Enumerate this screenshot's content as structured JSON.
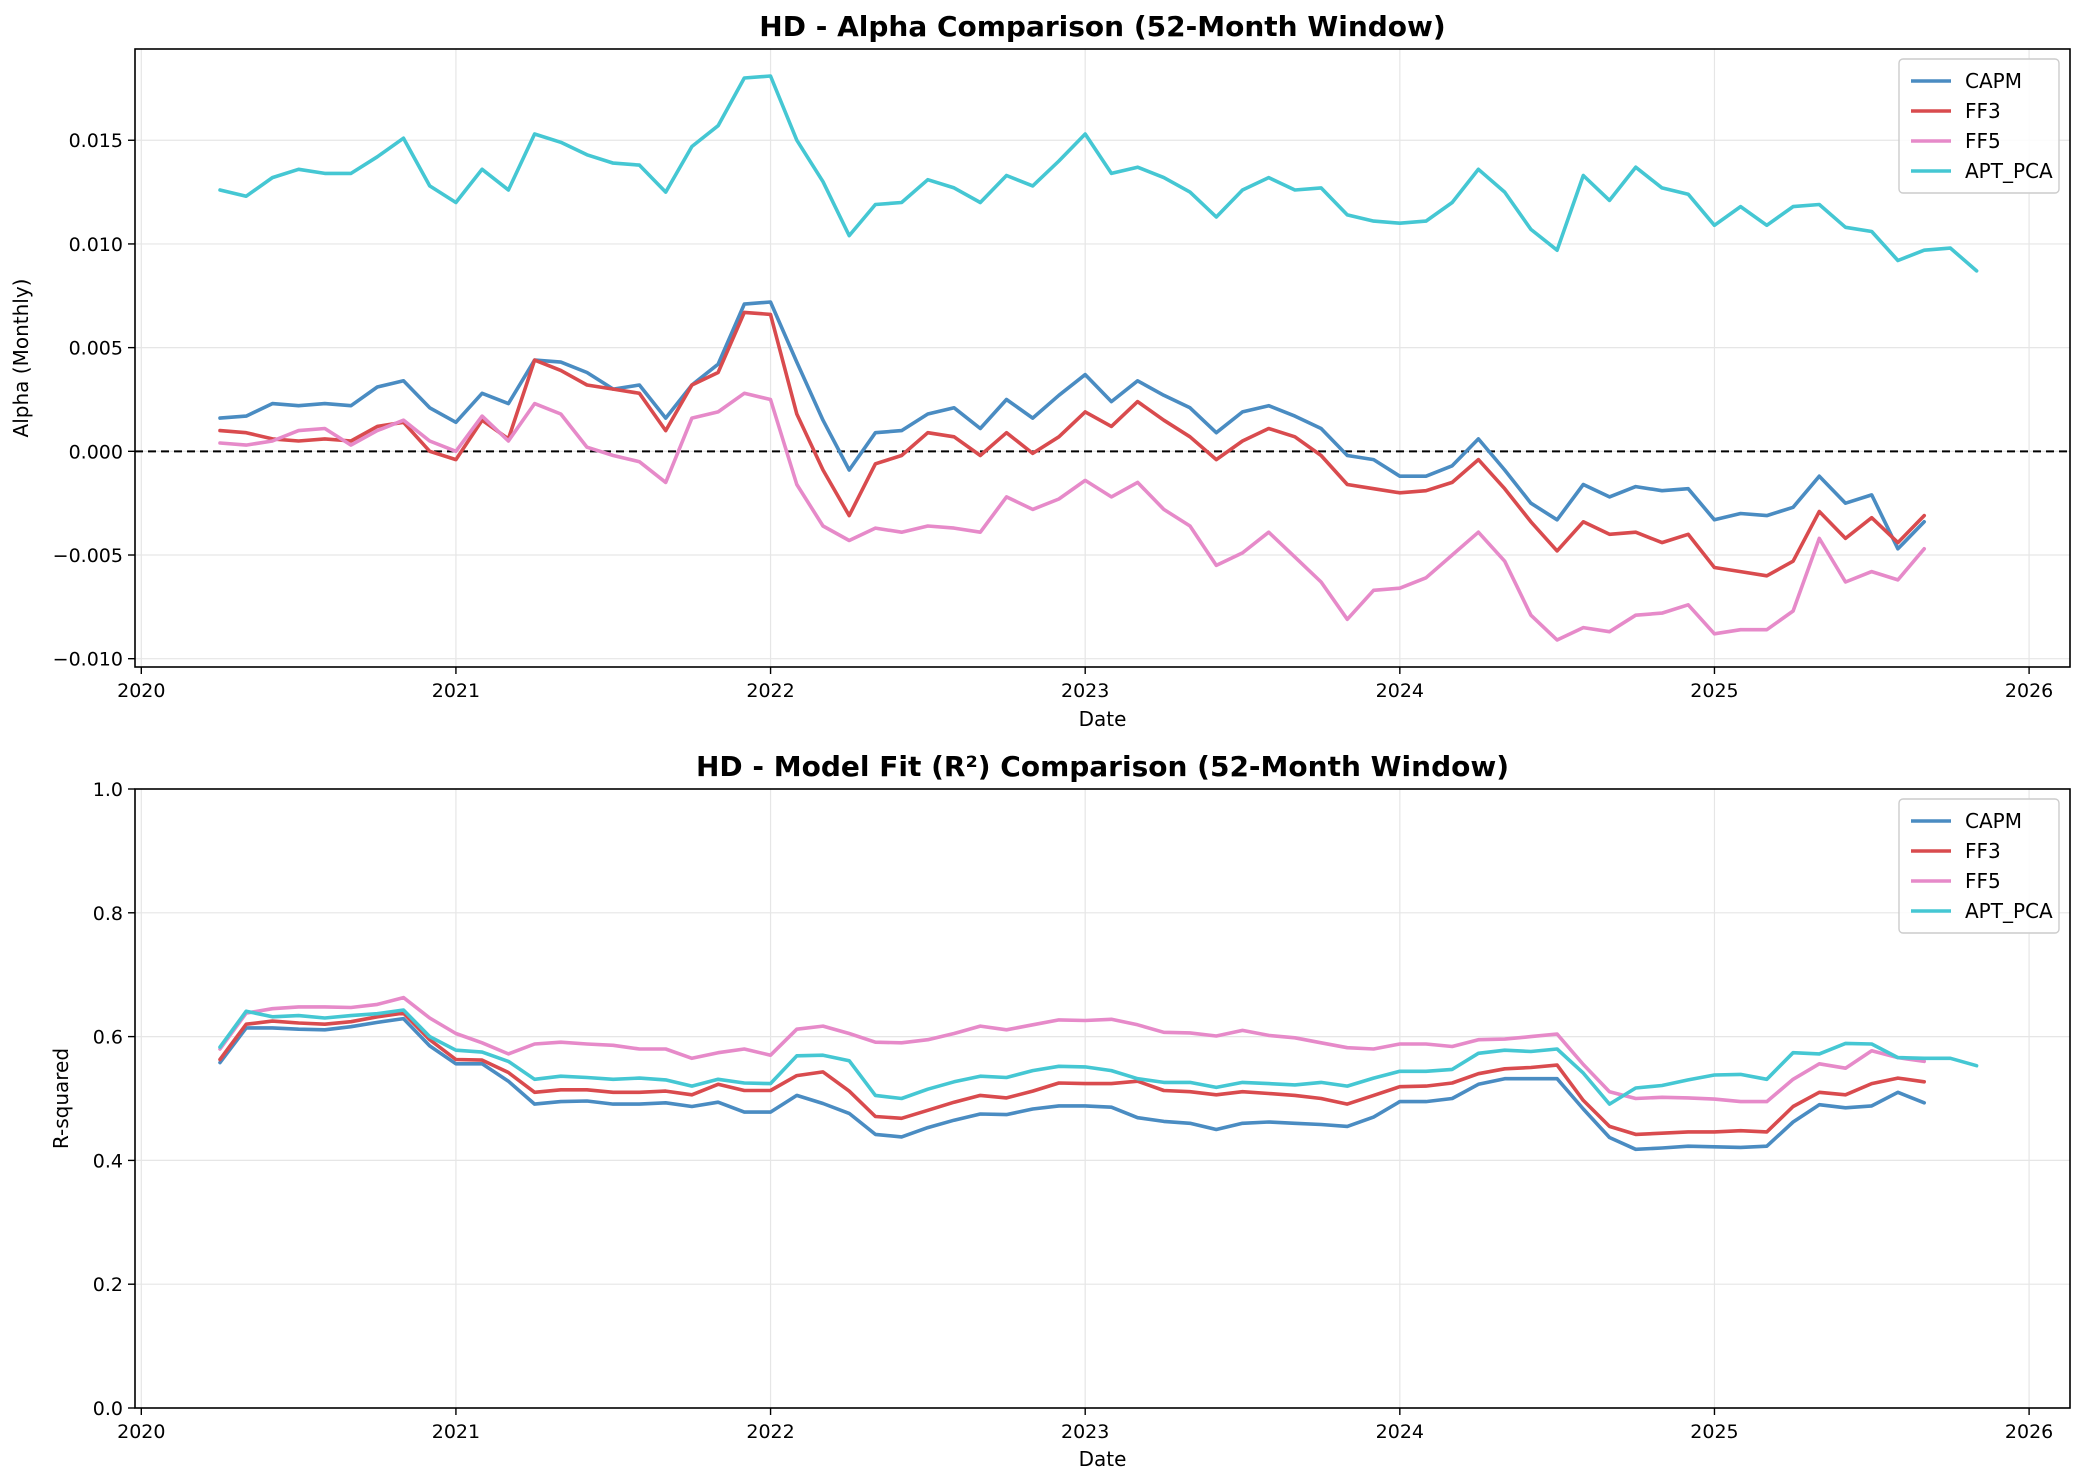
{
  "chart_data": [
    {
      "type": "line",
      "title": "HD - Alpha Comparison (52-Month Window)",
      "xlabel": "Date",
      "ylabel": "Alpha (Monthly)",
      "xlim": [
        2019.98,
        2026.13
      ],
      "ylim": [
        -0.0104,
        0.0194
      ],
      "xticks": [
        "2020",
        "2021",
        "2022",
        "2023",
        "2024",
        "2025",
        "2026"
      ],
      "yticks": [
        "−0.010",
        "−0.005",
        "0.000",
        "0.005",
        "0.010",
        "0.015"
      ],
      "ytick_values": [
        -0.01,
        -0.005,
        0.0,
        0.005,
        0.01,
        0.015
      ],
      "zero_line": true,
      "grid": true,
      "legend": "top-right",
      "series": [
        {
          "name": "CAPM",
          "color": "#4A8CC2",
          "x_start": 2020.25,
          "x_step": 0.08333,
          "values": [
            0.0016,
            0.0017,
            0.0023,
            0.0022,
            0.0023,
            0.0022,
            0.0031,
            0.0034,
            0.0021,
            0.0014,
            0.0028,
            0.0023,
            0.0044,
            0.0043,
            0.0038,
            0.003,
            0.0032,
            0.0016,
            0.0032,
            0.0042,
            0.0071,
            0.0072,
            0.0043,
            0.0015,
            -0.0009,
            0.0009,
            0.001,
            0.0018,
            0.0021,
            0.0011,
            0.0025,
            0.0016,
            0.0027,
            0.0037,
            0.0024,
            0.0034,
            0.0027,
            0.0021,
            0.0009,
            0.0019,
            0.0022,
            0.0017,
            0.0011,
            -0.0002,
            -0.0004,
            -0.0012,
            -0.0012,
            -0.0007,
            0.0006,
            -0.0009,
            -0.0025,
            -0.0033,
            -0.0016,
            -0.0022,
            -0.0017,
            -0.0019,
            -0.0018,
            -0.0033,
            -0.003,
            -0.0031,
            -0.0027,
            -0.0012,
            -0.0025,
            -0.0021,
            -0.0047,
            -0.0034
          ]
        },
        {
          "name": "FF3",
          "color": "#D94B4E",
          "x_start": 2020.25,
          "x_step": 0.08333,
          "values": [
            0.001,
            0.0009,
            0.0006,
            0.0005,
            0.0006,
            0.0005,
            0.0012,
            0.0014,
            0.0,
            -0.0004,
            0.0015,
            0.0006,
            0.0044,
            0.0039,
            0.0032,
            0.003,
            0.0028,
            0.001,
            0.0032,
            0.0038,
            0.0067,
            0.0066,
            0.0018,
            -0.0009,
            -0.0031,
            -0.0006,
            -0.0002,
            0.0009,
            0.0007,
            -0.0002,
            0.0009,
            -0.0001,
            0.0007,
            0.0019,
            0.0012,
            0.0024,
            0.0015,
            0.0007,
            -0.0004,
            0.0005,
            0.0011,
            0.0007,
            -0.0002,
            -0.0016,
            -0.0018,
            -0.002,
            -0.0019,
            -0.0015,
            -0.0004,
            -0.0018,
            -0.0034,
            -0.0048,
            -0.0034,
            -0.004,
            -0.0039,
            -0.0044,
            -0.004,
            -0.0056,
            -0.0058,
            -0.006,
            -0.0053,
            -0.0029,
            -0.0042,
            -0.0032,
            -0.0044,
            -0.0031
          ]
        },
        {
          "name": "FF5",
          "color": "#E68AC9",
          "x_start": 2020.25,
          "x_step": 0.08333,
          "values": [
            0.0004,
            0.0003,
            0.0005,
            0.001,
            0.0011,
            0.0003,
            0.001,
            0.0015,
            0.0005,
            0.0,
            0.0017,
            0.0005,
            0.0023,
            0.0018,
            0.0002,
            -0.0002,
            -0.0005,
            -0.0015,
            0.0016,
            0.0019,
            0.0028,
            0.0025,
            -0.0016,
            -0.0036,
            -0.0043,
            -0.0037,
            -0.0039,
            -0.0036,
            -0.0037,
            -0.0039,
            -0.0022,
            -0.0028,
            -0.0023,
            -0.0014,
            -0.0022,
            -0.0015,
            -0.0028,
            -0.0036,
            -0.0055,
            -0.0049,
            -0.0039,
            -0.0051,
            -0.0063,
            -0.0081,
            -0.0067,
            -0.0066,
            -0.0061,
            -0.005,
            -0.0039,
            -0.0053,
            -0.0079,
            -0.0091,
            -0.0085,
            -0.0087,
            -0.0079,
            -0.0078,
            -0.0074,
            -0.0088,
            -0.0086,
            -0.0086,
            -0.0077,
            -0.0042,
            -0.0063,
            -0.0058,
            -0.0062,
            -0.0047
          ]
        },
        {
          "name": "APT_PCA",
          "color": "#45C7D3",
          "x_start": 2020.25,
          "x_step": 0.08333,
          "values": [
            0.0126,
            0.0123,
            0.0132,
            0.0136,
            0.0134,
            0.0134,
            0.0142,
            0.0151,
            0.0128,
            0.012,
            0.0136,
            0.0126,
            0.0153,
            0.0149,
            0.0143,
            0.0139,
            0.0138,
            0.0125,
            0.0147,
            0.0157,
            0.018,
            0.0181,
            0.015,
            0.013,
            0.0104,
            0.0119,
            0.012,
            0.0131,
            0.0127,
            0.012,
            0.0133,
            0.0128,
            0.014,
            0.0153,
            0.0134,
            0.0137,
            0.0132,
            0.0125,
            0.0113,
            0.0126,
            0.0132,
            0.0126,
            0.0127,
            0.0114,
            0.0111,
            0.011,
            0.0111,
            0.012,
            0.0136,
            0.0125,
            0.0107,
            0.0097,
            0.0133,
            0.0121,
            0.0137,
            0.0127,
            0.0124,
            0.0109,
            0.0118,
            0.0109,
            0.0118,
            0.0119,
            0.0108,
            0.0106,
            0.0092,
            0.0097,
            0.0098,
            0.0087
          ]
        }
      ]
    },
    {
      "type": "line",
      "title": "HD - Model Fit (R²) Comparison (52-Month Window)",
      "xlabel": "Date",
      "ylabel": "R-squared",
      "xlim": [
        2019.98,
        2026.13
      ],
      "ylim": [
        0.0,
        1.0
      ],
      "xticks": [
        "2020",
        "2021",
        "2022",
        "2023",
        "2024",
        "2025",
        "2026"
      ],
      "yticks": [
        "0.0",
        "0.2",
        "0.4",
        "0.6",
        "0.8",
        "1.0"
      ],
      "ytick_values": [
        0.0,
        0.2,
        0.4,
        0.6,
        0.8,
        1.0
      ],
      "zero_line": false,
      "grid": true,
      "legend": "top-right",
      "series": [
        {
          "name": "CAPM",
          "color": "#4A8CC2",
          "x_start": 2020.25,
          "x_step": 0.08333,
          "values": [
            0.558,
            0.614,
            0.614,
            0.612,
            0.611,
            0.616,
            0.623,
            0.629,
            0.585,
            0.556,
            0.556,
            0.528,
            0.491,
            0.495,
            0.496,
            0.491,
            0.491,
            0.493,
            0.487,
            0.494,
            0.478,
            0.478,
            0.505,
            0.492,
            0.476,
            0.442,
            0.438,
            0.453,
            0.465,
            0.475,
            0.474,
            0.483,
            0.488,
            0.488,
            0.486,
            0.469,
            0.463,
            0.46,
            0.45,
            0.46,
            0.462,
            0.46,
            0.458,
            0.455,
            0.47,
            0.495,
            0.495,
            0.5,
            0.523,
            0.532,
            0.532,
            0.532,
            0.483,
            0.437,
            0.418,
            0.42,
            0.423,
            0.422,
            0.421,
            0.423,
            0.462,
            0.49,
            0.485,
            0.488,
            0.51,
            0.493
          ]
        },
        {
          "name": "FF3",
          "color": "#D94B4E",
          "x_start": 2020.25,
          "x_step": 0.08333,
          "values": [
            0.563,
            0.62,
            0.625,
            0.622,
            0.62,
            0.624,
            0.632,
            0.638,
            0.595,
            0.563,
            0.562,
            0.542,
            0.51,
            0.514,
            0.514,
            0.51,
            0.51,
            0.512,
            0.506,
            0.523,
            0.513,
            0.513,
            0.537,
            0.543,
            0.512,
            0.471,
            0.468,
            0.481,
            0.494,
            0.505,
            0.501,
            0.512,
            0.525,
            0.524,
            0.524,
            0.528,
            0.513,
            0.511,
            0.506,
            0.511,
            0.508,
            0.505,
            0.5,
            0.491,
            0.505,
            0.519,
            0.52,
            0.525,
            0.54,
            0.548,
            0.55,
            0.554,
            0.497,
            0.455,
            0.442,
            0.444,
            0.446,
            0.446,
            0.448,
            0.446,
            0.487,
            0.51,
            0.506,
            0.524,
            0.533,
            0.527
          ]
        },
        {
          "name": "FF5",
          "color": "#E68AC9",
          "x_start": 2020.25,
          "x_step": 0.08333,
          "values": [
            0.58,
            0.638,
            0.645,
            0.648,
            0.648,
            0.647,
            0.652,
            0.663,
            0.63,
            0.605,
            0.59,
            0.572,
            0.588,
            0.591,
            0.588,
            0.586,
            0.58,
            0.58,
            0.565,
            0.574,
            0.58,
            0.57,
            0.612,
            0.617,
            0.605,
            0.591,
            0.59,
            0.595,
            0.605,
            0.617,
            0.611,
            0.619,
            0.627,
            0.626,
            0.628,
            0.619,
            0.607,
            0.606,
            0.601,
            0.61,
            0.602,
            0.598,
            0.59,
            0.582,
            0.58,
            0.588,
            0.588,
            0.584,
            0.595,
            0.596,
            0.6,
            0.604,
            0.555,
            0.511,
            0.5,
            0.502,
            0.501,
            0.499,
            0.495,
            0.495,
            0.531,
            0.556,
            0.549,
            0.577,
            0.566,
            0.56
          ]
        },
        {
          "name": "APT_PCA",
          "color": "#45C7D3",
          "x_start": 2020.25,
          "x_step": 0.08333,
          "values": [
            0.583,
            0.641,
            0.632,
            0.634,
            0.63,
            0.634,
            0.637,
            0.643,
            0.6,
            0.578,
            0.575,
            0.56,
            0.531,
            0.536,
            0.534,
            0.531,
            0.533,
            0.53,
            0.52,
            0.531,
            0.525,
            0.524,
            0.569,
            0.57,
            0.561,
            0.505,
            0.5,
            0.515,
            0.527,
            0.536,
            0.534,
            0.545,
            0.552,
            0.551,
            0.545,
            0.532,
            0.526,
            0.526,
            0.518,
            0.526,
            0.524,
            0.522,
            0.526,
            0.52,
            0.533,
            0.544,
            0.544,
            0.547,
            0.573,
            0.578,
            0.576,
            0.58,
            0.541,
            0.491,
            0.517,
            0.521,
            0.53,
            0.538,
            0.539,
            0.531,
            0.574,
            0.572,
            0.589,
            0.588,
            0.566,
            0.565,
            0.565,
            0.553
          ]
        }
      ]
    }
  ]
}
